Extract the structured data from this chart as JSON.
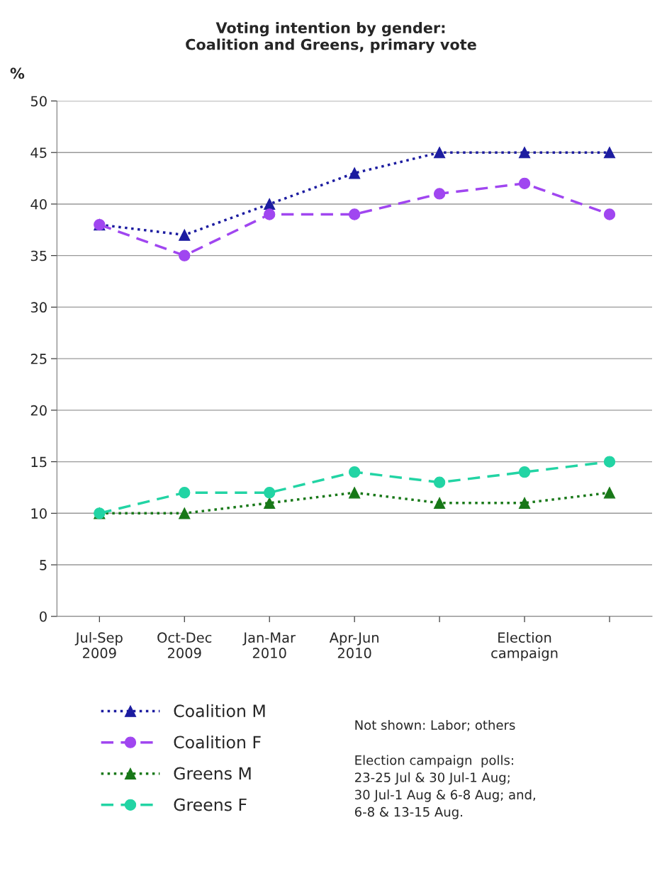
{
  "chart_data": {
    "type": "line",
    "title": "Voting intention by gender:\nCoalition and Greens, primary vote",
    "ylabel": "%",
    "categories": [
      "Jul-Sep\n2009",
      "Oct-Dec\n2009",
      "Jan-Mar\n2010",
      "Apr-Jun\n2010",
      null,
      "Election\ncampaign",
      null
    ],
    "ylim": [
      0,
      50
    ],
    "yticks": [
      0,
      5,
      10,
      15,
      20,
      25,
      30,
      35,
      40,
      45,
      50
    ],
    "grid": "y",
    "legend": "bottom left",
    "series": [
      {
        "name": "Coalition M",
        "color": "#1c1ca0",
        "marker": "triangle",
        "line_style": "dotted",
        "values": [
          38,
          37,
          40,
          43,
          45,
          45,
          45
        ]
      },
      {
        "name": "Coalition F",
        "color": "#a046f0",
        "marker": "circle",
        "line_style": "dashed",
        "values": [
          38,
          35,
          39,
          39,
          41,
          42,
          39
        ]
      },
      {
        "name": "Greens M",
        "color": "#187818",
        "marker": "triangle",
        "line_style": "dotted",
        "values": [
          10,
          10,
          11,
          12,
          11,
          11,
          12
        ]
      },
      {
        "name": "Greens F",
        "color": "#22d4a4",
        "marker": "circle",
        "line_style": "dashed",
        "values": [
          10,
          12,
          12,
          14,
          13,
          14,
          15
        ]
      }
    ],
    "annotations": [
      "Not shown: Labor; others",
      "Election campaign  polls:\n23-25 Jul & 30 Jul-1 Aug;\n30 Jul-1 Aug & 6-8 Aug; and,\n6-8 & 13-15 Aug."
    ]
  }
}
